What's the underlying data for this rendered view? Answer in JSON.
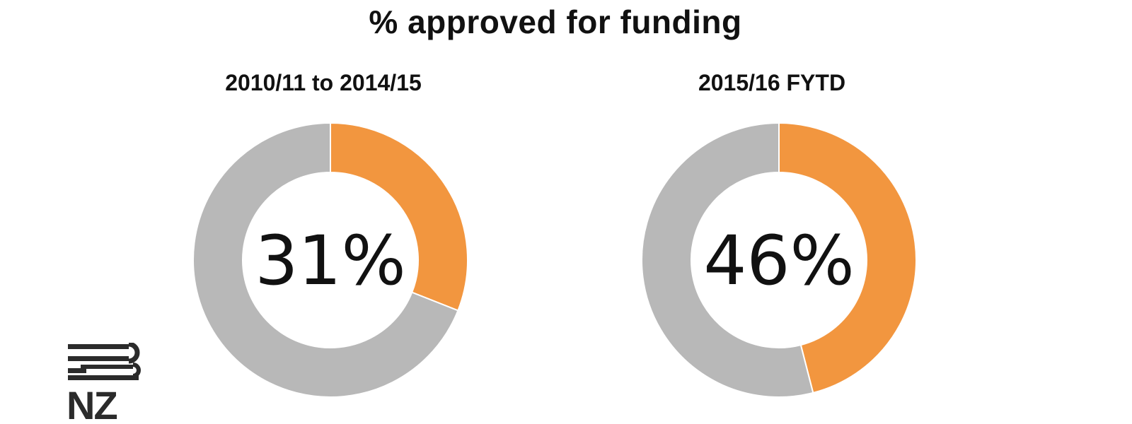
{
  "header": {
    "title": "% approved for funding"
  },
  "logo": {
    "text": "NZ",
    "icon": "nz-brand-logo-icon"
  },
  "colors": {
    "approved": "#f2963f",
    "other": "#b8b8b8",
    "separator": "#ffffff"
  },
  "chart_data": [
    {
      "type": "pie",
      "title": "2010/11 to 2014/15",
      "slices": [
        {
          "label": "",
          "value": 31
        },
        {
          "label": "",
          "value": 69
        }
      ],
      "center_label": "31%",
      "grid": false,
      "legend": "none"
    },
    {
      "type": "pie",
      "title": "2015/16 FYTD",
      "slices": [
        {
          "label": "",
          "value": 46
        },
        {
          "label": "",
          "value": 54
        }
      ],
      "center_label": "46%",
      "grid": false,
      "legend": "none"
    }
  ]
}
